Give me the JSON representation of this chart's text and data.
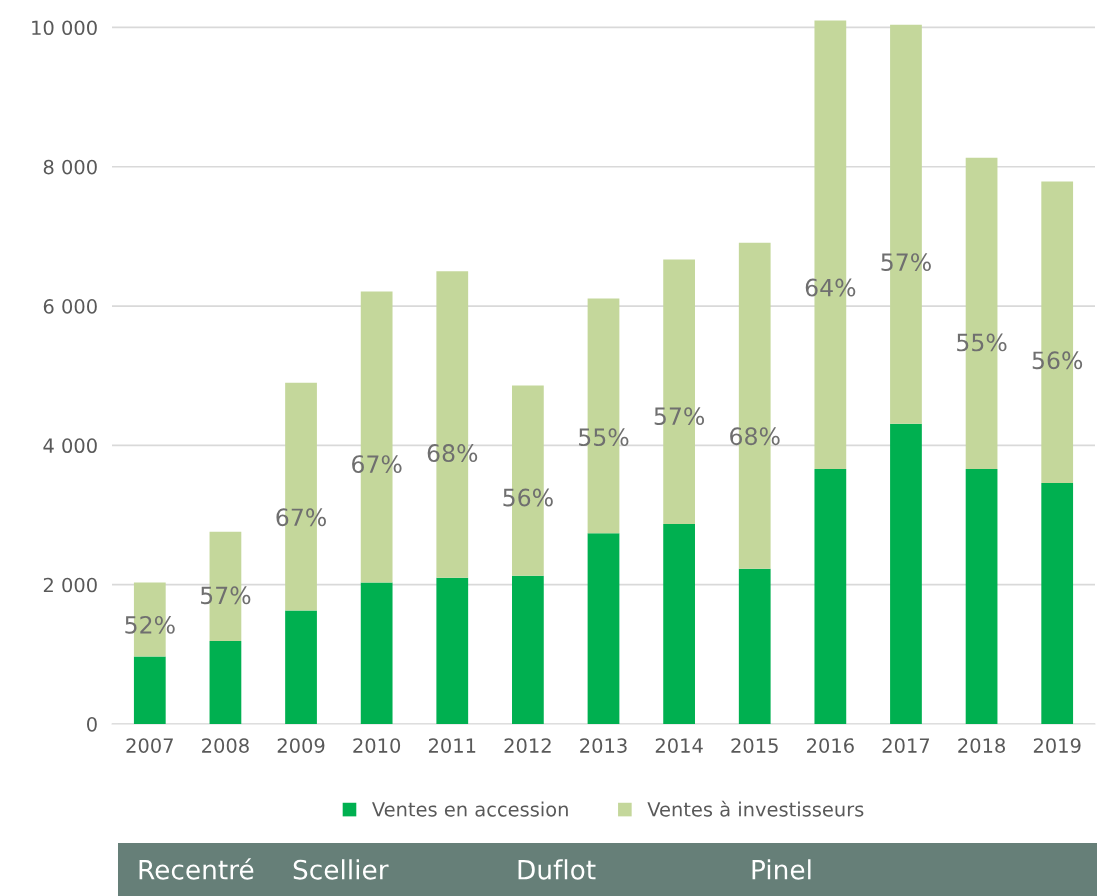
{
  "chart_data": {
    "type": "bar",
    "stacked": true,
    "categories": [
      "2007",
      "2008",
      "2009",
      "2010",
      "2011",
      "2012",
      "2013",
      "2014",
      "2015",
      "2016",
      "2017",
      "2018",
      "2019"
    ],
    "series": [
      {
        "name": "Ventes en accession",
        "color": "#00b050",
        "values": [
          970,
          1190,
          1630,
          2030,
          2100,
          2130,
          2740,
          2870,
          2230,
          3660,
          4310,
          3660,
          3460
        ]
      },
      {
        "name": "Ventes à investisseurs",
        "color": "#c4d79b",
        "values": [
          1060,
          1570,
          3270,
          4180,
          4400,
          2730,
          3370,
          3800,
          4680,
          6440,
          5730,
          4470,
          4330
        ]
      }
    ],
    "ylim": [
      0,
      10150
    ],
    "yticks": [
      {
        "value": 0,
        "label": "0"
      },
      {
        "value": 2000,
        "label": "2 000"
      },
      {
        "value": 4000,
        "label": "4 000"
      },
      {
        "value": 6000,
        "label": "6 000"
      },
      {
        "value": 8000,
        "label": "8 000"
      },
      {
        "value": 10000,
        "label": "10 000"
      }
    ],
    "grid": "y",
    "legend": "bottom",
    "annotations": [
      "52%",
      "57%",
      "67%",
      "67%",
      "68%",
      "56%",
      "55%",
      "57%",
      "68%",
      "64%",
      "57%",
      "55%",
      "56%",
      "Recentré",
      "Scellier",
      "Duflot",
      "Pinel"
    ]
  }
}
